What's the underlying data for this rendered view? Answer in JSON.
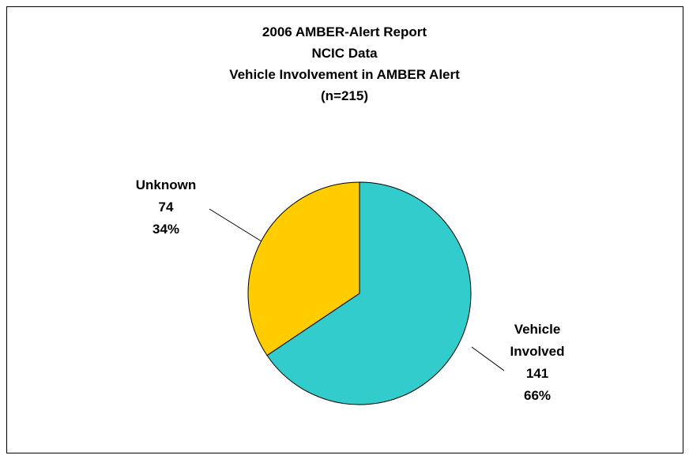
{
  "chart_data": {
    "type": "pie",
    "title": [
      "2006 AMBER-Alert Report",
      "NCIC Data",
      "Vehicle Involvement in AMBER Alert",
      "(n=215)"
    ],
    "categories": [
      "Vehicle Involved",
      "Unknown"
    ],
    "values": [
      141,
      74
    ],
    "percent_labels": [
      "66%",
      "34%"
    ],
    "colors": [
      "#33cccc",
      "#ffcc00"
    ]
  }
}
